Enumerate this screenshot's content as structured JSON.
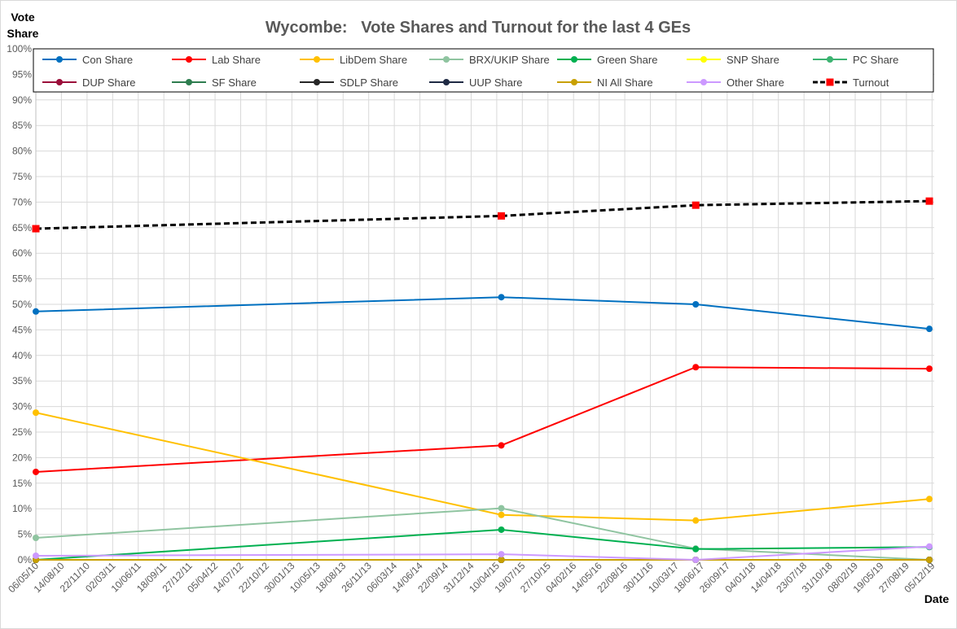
{
  "chart_data": {
    "type": "line",
    "title": "Wycombe:   Vote Shares and Turnout for the last 4 GEs",
    "ylabel_line1": "Vote",
    "ylabel_line2": "Share",
    "xlabel": "Date",
    "ylim": [
      0,
      100
    ],
    "yticks": [
      "0%",
      "5%",
      "10%",
      "15%",
      "20%",
      "25%",
      "30%",
      "35%",
      "40%",
      "45%",
      "50%",
      "55%",
      "60%",
      "65%",
      "70%",
      "75%",
      "80%",
      "85%",
      "90%",
      "95%",
      "100%"
    ],
    "xlim": [
      "2010-05-06",
      "2019-12-31"
    ],
    "xticks": [
      "06/05/10",
      "14/08/10",
      "22/11/10",
      "02/03/11",
      "10/06/11",
      "18/09/11",
      "27/12/11",
      "05/04/12",
      "14/07/12",
      "22/10/12",
      "30/01/13",
      "10/05/13",
      "18/08/13",
      "26/11/13",
      "06/03/14",
      "14/06/14",
      "22/09/14",
      "31/12/14",
      "10/04/15",
      "19/07/15",
      "27/10/15",
      "04/02/16",
      "14/05/16",
      "22/08/16",
      "30/11/16",
      "10/03/17",
      "18/06/17",
      "26/09/17",
      "04/01/18",
      "14/04/18",
      "23/07/18",
      "31/10/18",
      "08/02/19",
      "19/05/19",
      "27/08/19",
      "05/12/19"
    ],
    "x": [
      "2010-05-06",
      "2015-05-07",
      "2017-06-08",
      "2019-12-12"
    ],
    "grid": true,
    "legend_position": "top",
    "series": [
      {
        "name": "Con Share",
        "color": "#0070C0",
        "marker": "circle",
        "values": [
          48.6,
          51.4,
          50.0,
          45.2
        ]
      },
      {
        "name": "Lab Share",
        "color": "#FF0000",
        "marker": "circle",
        "values": [
          17.2,
          22.4,
          37.7,
          37.4
        ]
      },
      {
        "name": "LibDem Share",
        "color": "#FFC000",
        "marker": "circle",
        "values": [
          28.8,
          8.8,
          7.7,
          11.9
        ]
      },
      {
        "name": "BRX/UKIP Share",
        "color": "#8FC4A0",
        "marker": "circle",
        "values": [
          4.3,
          10.1,
          2.2,
          0
        ]
      },
      {
        "name": "Green Share",
        "color": "#00B050",
        "marker": "circle",
        "values": [
          0,
          5.9,
          2.1,
          2.5
        ]
      },
      {
        "name": "SNP Share",
        "color": "#FFFF00",
        "marker": "circle",
        "values": [
          0,
          0,
          0,
          0
        ]
      },
      {
        "name": "PC Share",
        "color": "#3CB371",
        "marker": "circle",
        "values": [
          0,
          0,
          0,
          0
        ]
      },
      {
        "name": "DUP Share",
        "color": "#9B0F3A",
        "marker": "circle",
        "values": [
          0,
          0,
          0,
          0
        ]
      },
      {
        "name": "SF Share",
        "color": "#2E7D4F",
        "marker": "circle",
        "values": [
          0,
          0,
          0,
          0
        ]
      },
      {
        "name": "SDLP Share",
        "color": "#262626",
        "marker": "circle",
        "values": [
          0,
          0,
          0,
          0
        ]
      },
      {
        "name": "UUP Share",
        "color": "#1F2A44",
        "marker": "circle",
        "values": [
          0,
          0,
          0,
          0
        ]
      },
      {
        "name": "NI All Share",
        "color": "#C8A000",
        "marker": "circle",
        "values": [
          0,
          0,
          0,
          0
        ]
      },
      {
        "name": "Other Share",
        "color": "#CC99FF",
        "marker": "circle",
        "values": [
          0.8,
          1.1,
          0,
          2.6
        ]
      },
      {
        "name": "Turnout",
        "color": "#000000",
        "marker": "square",
        "marker_color": "#FF0000",
        "dashed": true,
        "values": [
          64.8,
          67.3,
          69.4,
          70.2
        ]
      }
    ]
  }
}
